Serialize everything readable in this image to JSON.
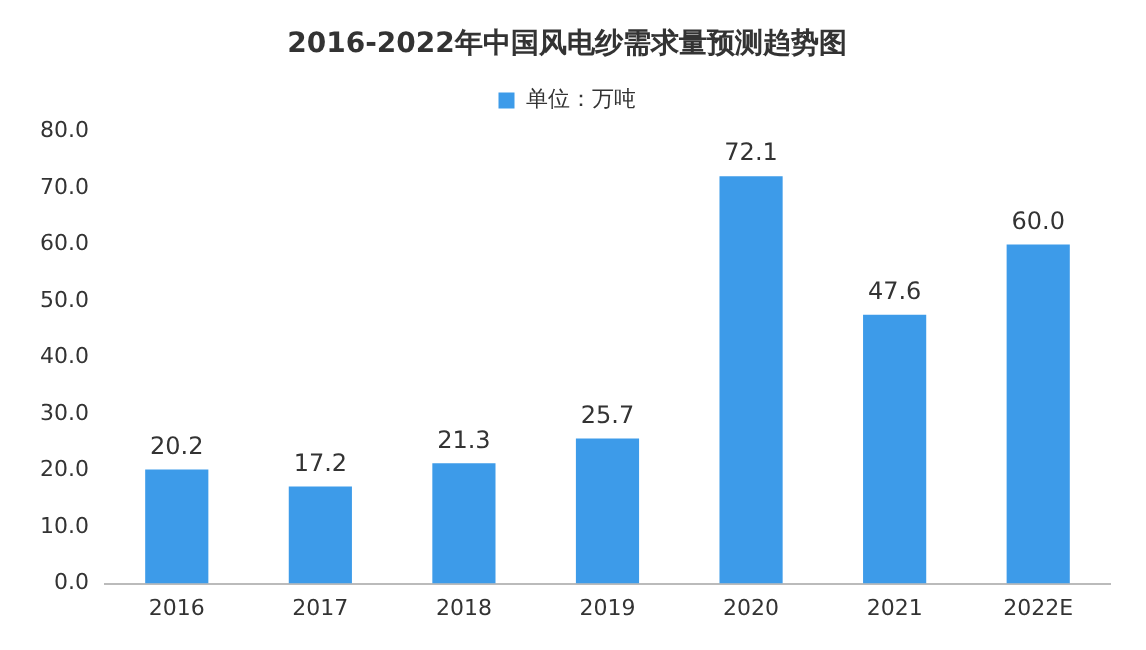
{
  "chart_data": {
    "type": "bar",
    "title": "2016-2022年中国风电纱需求量预测趋势图",
    "categories": [
      "2016",
      "2017",
      "2018",
      "2019",
      "2020",
      "2021",
      "2022E"
    ],
    "series": [
      {
        "name": "单位：万吨",
        "color": "#3d9be9",
        "values": [
          20.2,
          17.2,
          21.3,
          25.7,
          72.1,
          47.6,
          60.0
        ]
      }
    ],
    "value_labels": [
      "20.2",
      "17.2",
      "21.3",
      "25.7",
      "72.1",
      "47.6",
      "60.0"
    ],
    "ylim": [
      0,
      80
    ],
    "yticks": [
      {
        "value": 0,
        "label": "0.0"
      },
      {
        "value": 10,
        "label": "10.0"
      },
      {
        "value": 20,
        "label": "20.0"
      },
      {
        "value": 30,
        "label": "30.0"
      },
      {
        "value": 40,
        "label": "40.0"
      },
      {
        "value": 50,
        "label": "50.0"
      },
      {
        "value": 60,
        "label": "60.0"
      },
      {
        "value": 70,
        "label": "70.0"
      },
      {
        "value": 80,
        "label": "80.0"
      }
    ],
    "grid": false,
    "legend": "top"
  }
}
